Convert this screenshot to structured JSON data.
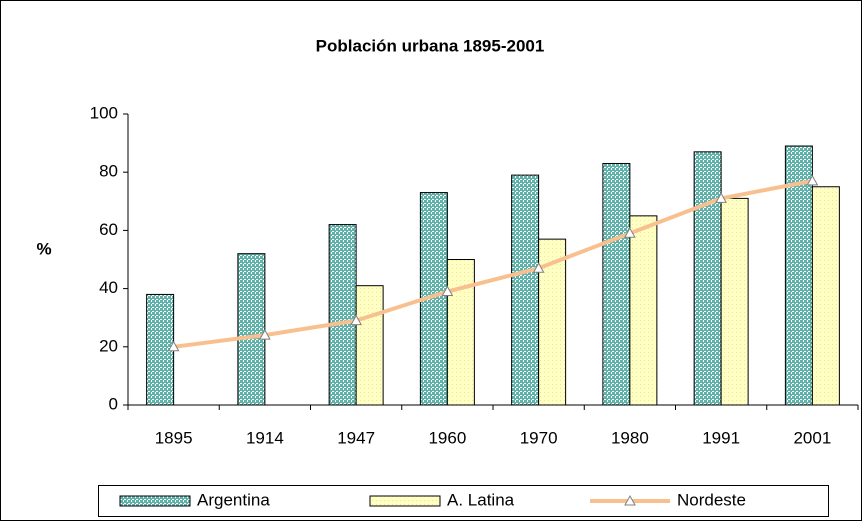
{
  "chart_data": {
    "type": "bar",
    "title": "Población urbana  1895-2001",
    "ylabel": "%",
    "categories": [
      "1895",
      "1914",
      "1947",
      "1960",
      "1970",
      "1980",
      "1991",
      "2001"
    ],
    "series": [
      {
        "name": "Argentina",
        "type": "bar",
        "color": "#5fb3ab",
        "values": [
          38,
          52,
          62,
          73,
          79,
          83,
          87,
          89
        ]
      },
      {
        "name": "A. Latina",
        "type": "bar",
        "color": "#ffffc4",
        "values": [
          null,
          null,
          41,
          50,
          57,
          65,
          71,
          75
        ]
      },
      {
        "name": "Nordeste",
        "type": "line",
        "color": "#f9c08f",
        "values": [
          20,
          24,
          29,
          39,
          47,
          59,
          71,
          77
        ]
      }
    ],
    "ylim": [
      0,
      100
    ],
    "yticks": [
      0,
      20,
      40,
      60,
      80,
      100
    ],
    "grid": false,
    "legend": "bottom"
  }
}
